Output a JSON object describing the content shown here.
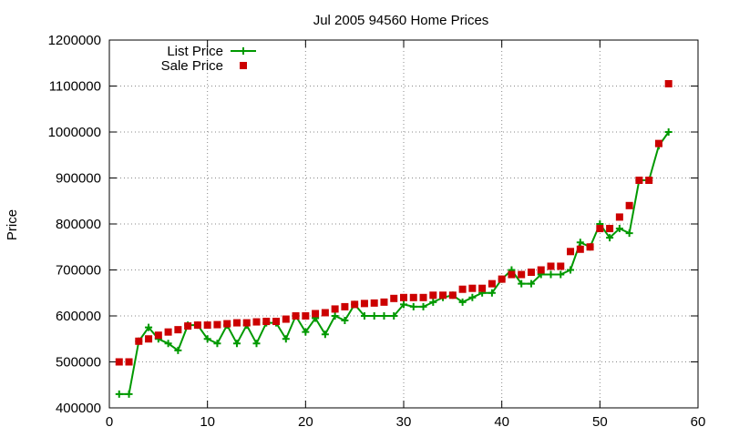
{
  "chart_data": {
    "type": "line",
    "title": "Jul 2005 94560 Home Prices",
    "xlabel": "",
    "ylabel": "Price",
    "xlim": [
      0,
      60
    ],
    "ylim": [
      400000,
      1200000
    ],
    "x_ticks": [
      "0",
      "10",
      "20",
      "30",
      "40",
      "50",
      "60"
    ],
    "y_ticks": [
      "400000",
      "500000",
      "600000",
      "700000",
      "800000",
      "900000",
      "1000000",
      "1100000",
      "1200000"
    ],
    "grid": true,
    "legend_position": "top-left",
    "series": [
      {
        "name": "List Price",
        "style": "line-plus",
        "color": "#009900",
        "x": [
          1,
          2,
          3,
          4,
          5,
          6,
          7,
          8,
          9,
          10,
          11,
          12,
          13,
          14,
          15,
          16,
          17,
          18,
          19,
          20,
          21,
          22,
          23,
          24,
          25,
          26,
          27,
          28,
          29,
          30,
          31,
          32,
          33,
          34,
          35,
          36,
          37,
          38,
          39,
          40,
          41,
          42,
          43,
          44,
          45,
          46,
          47,
          48,
          49,
          50,
          51,
          52,
          53,
          54,
          55,
          56,
          57
        ],
        "y": [
          430000,
          430000,
          545000,
          575000,
          550000,
          540000,
          525000,
          580000,
          580000,
          550000,
          540000,
          580000,
          540000,
          580000,
          540000,
          585000,
          585000,
          550000,
          600000,
          565000,
          595000,
          560000,
          600000,
          590000,
          625000,
          600000,
          600000,
          600000,
          600000,
          625000,
          620000,
          620000,
          630000,
          640000,
          645000,
          630000,
          640000,
          650000,
          650000,
          680000,
          700000,
          670000,
          670000,
          690000,
          690000,
          690000,
          700000,
          760000,
          750000,
          800000,
          770000,
          790000,
          780000,
          895000,
          895000,
          970000,
          1000000
        ]
      },
      {
        "name": "Sale Price",
        "style": "square",
        "color": "#cc0000",
        "x": [
          1,
          2,
          3,
          4,
          5,
          6,
          7,
          8,
          9,
          10,
          11,
          12,
          13,
          14,
          15,
          16,
          17,
          18,
          19,
          20,
          21,
          22,
          23,
          24,
          25,
          26,
          27,
          28,
          29,
          30,
          31,
          32,
          33,
          34,
          35,
          36,
          37,
          38,
          39,
          40,
          41,
          42,
          43,
          44,
          45,
          46,
          47,
          48,
          49,
          50,
          51,
          52,
          53,
          54,
          55,
          56,
          57
        ],
        "y": [
          500000,
          500000,
          545000,
          550000,
          558000,
          565000,
          570000,
          578000,
          580000,
          580000,
          581000,
          583000,
          585000,
          585000,
          587000,
          588000,
          588000,
          593000,
          600000,
          600000,
          605000,
          607000,
          615000,
          620000,
          625000,
          627000,
          628000,
          630000,
          638000,
          640000,
          640000,
          640000,
          645000,
          645000,
          645000,
          658000,
          660000,
          660000,
          670000,
          680000,
          690000,
          690000,
          695000,
          700000,
          708000,
          708000,
          740000,
          745000,
          750000,
          790000,
          790000,
          815000,
          840000,
          895000,
          895000,
          975000,
          1105000
        ]
      }
    ]
  }
}
